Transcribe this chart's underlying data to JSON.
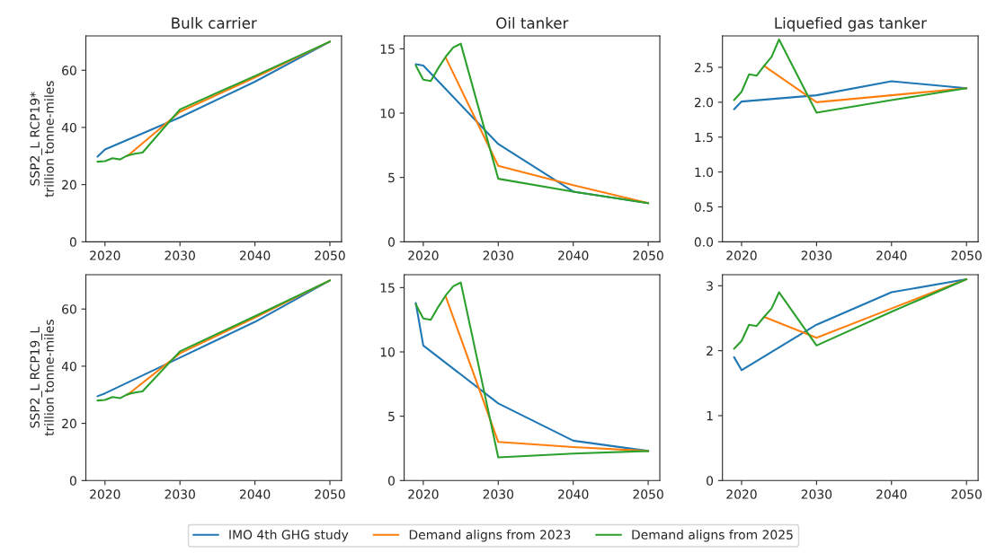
{
  "chart_data": [
    {
      "type": "line",
      "title": "Bulk carrier",
      "ylabel": "SSP2_L RCP19*\ntrillion tonne-miles",
      "xlim": [
        2017.45,
        2051.55
      ],
      "xticks": [
        2020,
        2030,
        2040,
        2050
      ],
      "ylim": [
        0,
        72
      ],
      "yticks": [
        0,
        20,
        40,
        60
      ],
      "legend": "bottom",
      "series": [
        {
          "name": "IMO 4th GHG study",
          "color": "#1f77b4",
          "x": [
            2019,
            2020,
            2030,
            2040,
            2050
          ],
          "values": [
            29.8,
            32.3,
            43.5,
            56,
            70
          ]
        },
        {
          "name": "Demand aligns from 2023",
          "color": "#ff7f0e",
          "x": [
            2023,
            2030,
            2040,
            2050
          ],
          "values": [
            30,
            45.5,
            57.5,
            70
          ]
        },
        {
          "name": "Demand aligns from 2025",
          "color": "#2ca02c",
          "x": [
            2019,
            2020,
            2021,
            2022,
            2023,
            2024,
            2025,
            2030,
            2040,
            2050
          ],
          "values": [
            28,
            28.2,
            29.2,
            28.8,
            30.2,
            30.8,
            31.2,
            46.3,
            58,
            70
          ]
        }
      ]
    },
    {
      "type": "line",
      "title": "Oil tanker",
      "xlim": [
        2017.45,
        2051.55
      ],
      "xticks": [
        2020,
        2030,
        2040,
        2050
      ],
      "ylim": [
        0,
        16
      ],
      "yticks": [
        0,
        5,
        10,
        15
      ],
      "series": [
        {
          "color": "#1f77b4",
          "x": [
            2019,
            2020,
            2030,
            2040,
            2050
          ],
          "values": [
            13.8,
            13.7,
            7.6,
            3.9,
            3.0
          ]
        },
        {
          "color": "#ff7f0e",
          "x": [
            2023,
            2030,
            2040,
            2050
          ],
          "values": [
            14.3,
            5.9,
            4.4,
            3.0
          ]
        },
        {
          "color": "#2ca02c",
          "x": [
            2019,
            2020,
            2021,
            2022,
            2023,
            2024,
            2025,
            2030,
            2040,
            2050
          ],
          "values": [
            13.7,
            12.6,
            12.5,
            13.5,
            14.4,
            15.1,
            15.4,
            4.9,
            3.9,
            3.0
          ]
        }
      ]
    },
    {
      "type": "line",
      "title": "Liquefied gas tanker",
      "xlim": [
        2017.45,
        2051.55
      ],
      "xticks": [
        2020,
        2030,
        2040,
        2050
      ],
      "ylim": [
        0,
        2.95
      ],
      "yticks": [
        {
          "value": 0,
          "label": "0.0"
        },
        0.5,
        {
          "value": 1,
          "label": "1.0"
        },
        1.5,
        {
          "value": 2,
          "label": "2.0"
        },
        2.5
      ],
      "series": [
        {
          "color": "#1f77b4",
          "x": [
            2019,
            2020,
            2030,
            2040,
            2050
          ],
          "values": [
            1.9,
            2.01,
            2.1,
            2.3,
            2.2
          ]
        },
        {
          "color": "#ff7f0e",
          "x": [
            2023,
            2030,
            2040,
            2050
          ],
          "values": [
            2.52,
            2.0,
            2.1,
            2.2
          ]
        },
        {
          "color": "#2ca02c",
          "x": [
            2019,
            2020,
            2021,
            2022,
            2023,
            2024,
            2025,
            2030,
            2040,
            2050
          ],
          "values": [
            2.03,
            2.15,
            2.4,
            2.38,
            2.52,
            2.65,
            2.9,
            1.85,
            2.03,
            2.2
          ]
        }
      ]
    },
    {
      "type": "line",
      "ylabel": "SSP2_L RCP19_L\ntrillion tonne-miles",
      "xlim": [
        2017.45,
        2051.55
      ],
      "xticks": [
        2020,
        2030,
        2040,
        2050
      ],
      "ylim": [
        0,
        72
      ],
      "yticks": [
        0,
        20,
        40,
        60
      ],
      "series": [
        {
          "color": "#1f77b4",
          "x": [
            2019,
            2020,
            2030,
            2040,
            2050
          ],
          "values": [
            29.5,
            30.5,
            43,
            55.5,
            70
          ]
        },
        {
          "color": "#ff7f0e",
          "x": [
            2023,
            2030,
            2040,
            2050
          ],
          "values": [
            30,
            44.5,
            57,
            70
          ]
        },
        {
          "color": "#2ca02c",
          "x": [
            2019,
            2020,
            2021,
            2022,
            2023,
            2024,
            2025,
            2030,
            2040,
            2050
          ],
          "values": [
            28,
            28.2,
            29.2,
            28.8,
            30.2,
            30.8,
            31.2,
            45.2,
            57.5,
            70
          ]
        }
      ]
    },
    {
      "type": "line",
      "xlim": [
        2017.45,
        2051.55
      ],
      "xticks": [
        2020,
        2030,
        2040,
        2050
      ],
      "ylim": [
        0,
        16
      ],
      "yticks": [
        0,
        5,
        10,
        15
      ],
      "series": [
        {
          "color": "#1f77b4",
          "x": [
            2019,
            2020,
            2030,
            2040,
            2050
          ],
          "values": [
            13.8,
            10.5,
            6.0,
            3.1,
            2.3
          ]
        },
        {
          "color": "#ff7f0e",
          "x": [
            2023,
            2030,
            2040,
            2050
          ],
          "values": [
            14.3,
            3.0,
            2.6,
            2.3
          ]
        },
        {
          "color": "#2ca02c",
          "x": [
            2019,
            2020,
            2021,
            2022,
            2023,
            2024,
            2025,
            2030,
            2040,
            2050
          ],
          "values": [
            13.7,
            12.6,
            12.5,
            13.5,
            14.4,
            15.1,
            15.4,
            1.8,
            2.1,
            2.3
          ]
        }
      ]
    },
    {
      "type": "line",
      "xlim": [
        2017.45,
        2051.55
      ],
      "xticks": [
        2020,
        2030,
        2040,
        2050
      ],
      "ylim": [
        0,
        3.17
      ],
      "yticks": [
        0,
        1,
        2,
        3
      ],
      "series": [
        {
          "color": "#1f77b4",
          "x": [
            2019,
            2020,
            2030,
            2040,
            2050
          ],
          "values": [
            1.9,
            1.7,
            2.4,
            2.9,
            3.1
          ]
        },
        {
          "color": "#ff7f0e",
          "x": [
            2023,
            2030,
            2040,
            2050
          ],
          "values": [
            2.52,
            2.2,
            2.65,
            3.1
          ]
        },
        {
          "color": "#2ca02c",
          "x": [
            2019,
            2020,
            2021,
            2022,
            2023,
            2024,
            2025,
            2030,
            2040,
            2050
          ],
          "values": [
            2.03,
            2.15,
            2.4,
            2.38,
            2.52,
            2.65,
            2.9,
            2.08,
            2.6,
            3.1
          ]
        }
      ]
    }
  ]
}
